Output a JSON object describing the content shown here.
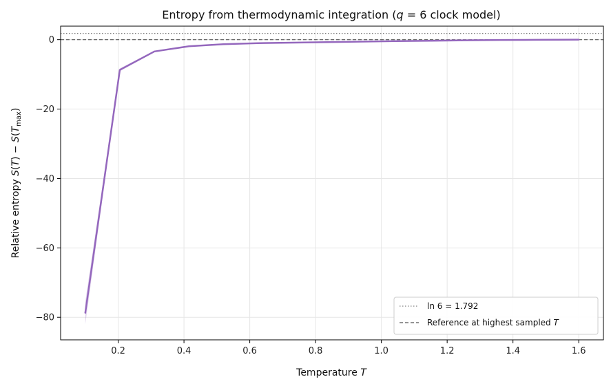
{
  "chart_data": {
    "type": "line",
    "title": "Entropy from thermodynamic integration (q = 6 clock model)",
    "title_parts": {
      "before": "Entropy from thermodynamic integration (",
      "var": "q",
      "mid": " = 6 clock model)"
    },
    "xlabel": "Temperature T",
    "xlabel_parts": {
      "text": "Temperature ",
      "var": "T"
    },
    "ylabel": "Relative entropy S(T) − S(T_max)",
    "ylabel_parts": {
      "text": "Relative entropy ",
      "f1": "S",
      "p1": "(",
      "var": "T",
      "p2": ") − ",
      "f2": "S",
      "p3": "(",
      "var2": "T",
      "sub": "max",
      "p4": ")"
    },
    "xlim": [
      0.025,
      1.675
    ],
    "ylim": [
      -86.5,
      3.9
    ],
    "xticks": [
      0.2,
      0.4,
      0.6,
      0.8,
      1.0,
      1.2,
      1.4,
      1.6
    ],
    "xtick_labels": [
      "0.2",
      "0.4",
      "0.6",
      "0.8",
      "1.0",
      "1.2",
      "1.4",
      "1.6"
    ],
    "yticks": [
      0,
      -20,
      -40,
      -60,
      -80
    ],
    "ytick_labels": [
      "0",
      "−20",
      "−40",
      "−60",
      "−80"
    ],
    "grid": true,
    "legend_position": "bottom-right",
    "series": [
      {
        "x": [
          0.1,
          0.205,
          0.31,
          0.415,
          0.52,
          0.625,
          0.73,
          0.835,
          0.94,
          1.045,
          1.15,
          1.255,
          1.36,
          1.465,
          1.6
        ],
        "values": [
          -78.7,
          -8.7,
          -3.4,
          -1.9,
          -1.3,
          -1.0,
          -0.85,
          -0.7,
          -0.55,
          -0.4,
          -0.3,
          -0.2,
          -0.1,
          -0.05,
          0.0
        ],
        "band_upper": [
          -75.5,
          -8.3,
          -3.2,
          -1.8,
          -1.25,
          -0.95,
          -0.8,
          -0.65,
          -0.5,
          -0.38,
          -0.28,
          -0.18,
          -0.09,
          -0.04,
          0.0
        ],
        "band_lower": [
          -82.0,
          -9.1,
          -3.6,
          -2.0,
          -1.35,
          -1.05,
          -0.9,
          -0.75,
          -0.6,
          -0.42,
          -0.32,
          -0.22,
          -0.11,
          -0.06,
          0.0
        ],
        "color": "#9467bd"
      }
    ],
    "reference_lines": [
      {
        "label": "ln 6 = 1.792",
        "label_parts": {
          "text": "ln 6 = 1.792"
        },
        "y": 1.792,
        "style": "dotted",
        "color": "#808080"
      },
      {
        "label": "Reference at highest sampled T",
        "label_parts": {
          "text": "Reference at highest sampled ",
          "var": "T"
        },
        "y": 0,
        "style": "dashed",
        "color": "#555555"
      }
    ]
  }
}
